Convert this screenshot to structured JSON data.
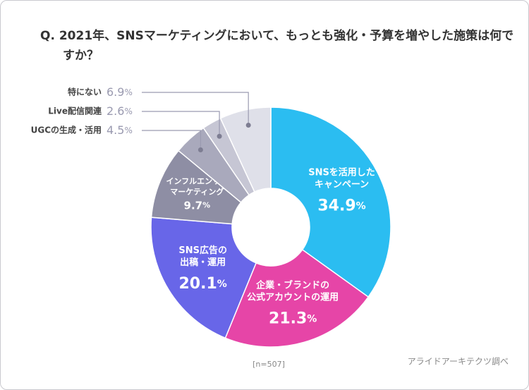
{
  "chart_data": {
    "type": "donut",
    "title": "Q. 2021年、SNSマーケティングにおいて、もっとも強化・予算を増やした施策は何ですか？",
    "categories": [
      "SNSを活用した\nキャンペーン",
      "企業・ブランドの\n公式アカウントの運用",
      "SNS広告の\n出稿・運用",
      "インフルエンサー\nマーケティング",
      "UGCの生成・活用",
      "Live配信関連",
      "特にない"
    ],
    "values": [
      34.9,
      21.3,
      20.1,
      9.7,
      4.5,
      2.6,
      6.9
    ],
    "value_labels": [
      "34.9%",
      "21.3%",
      "20.1%",
      "9.7%",
      "4.5%",
      "2.6%",
      "6.9%"
    ],
    "colors": [
      "#2bbdf1",
      "#e645a7",
      "#6866e8",
      "#8e8ea4",
      "#a9a9bc",
      "#c6c6d4",
      "#dfe0e9"
    ],
    "note": "[n=507]",
    "source": "アライドアーキテクツ調べ"
  }
}
